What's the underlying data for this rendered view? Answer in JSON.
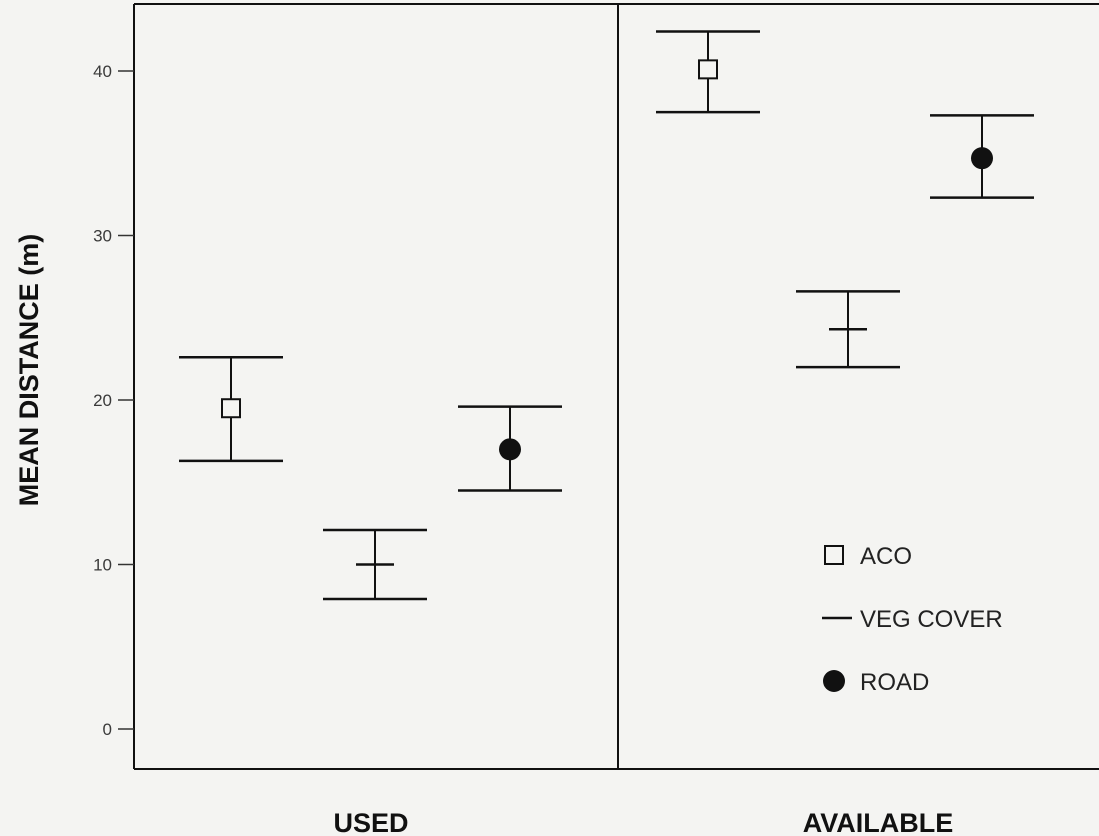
{
  "chart_data": {
    "type": "scatter",
    "variant": "error-bar",
    "xlabel": "",
    "ylabel": "MEAN DISTANCE  (m)",
    "ylim": [
      0,
      42
    ],
    "yticks": [
      "0",
      "10",
      "20",
      "30",
      "40"
    ],
    "panels": [
      "USED",
      "AVAILABLE"
    ],
    "legend": {
      "placement": "lower-right",
      "entries": [
        "ACO",
        "VEG COVER",
        "ROAD"
      ]
    },
    "series": [
      {
        "name": "ACO",
        "marker": "open-square",
        "points": [
          {
            "panel": "USED",
            "mean": 19.5,
            "lower": 16.3,
            "upper": 22.6
          },
          {
            "panel": "AVAILABLE",
            "mean": 40.1,
            "lower": 37.5,
            "upper": 42.4
          }
        ]
      },
      {
        "name": "VEG COVER",
        "marker": "dash",
        "points": [
          {
            "panel": "USED",
            "mean": 10.0,
            "lower": 7.9,
            "upper": 12.1
          },
          {
            "panel": "AVAILABLE",
            "mean": 24.3,
            "lower": 22.0,
            "upper": 26.6
          }
        ]
      },
      {
        "name": "ROAD",
        "marker": "filled-circle",
        "points": [
          {
            "panel": "USED",
            "mean": 17.0,
            "lower": 14.5,
            "upper": 19.6
          },
          {
            "panel": "AVAILABLE",
            "mean": 34.7,
            "lower": 32.3,
            "upper": 37.3
          }
        ]
      }
    ],
    "grid": false,
    "colors": {
      "line": "#111111",
      "background": "#f4f4f2"
    }
  }
}
